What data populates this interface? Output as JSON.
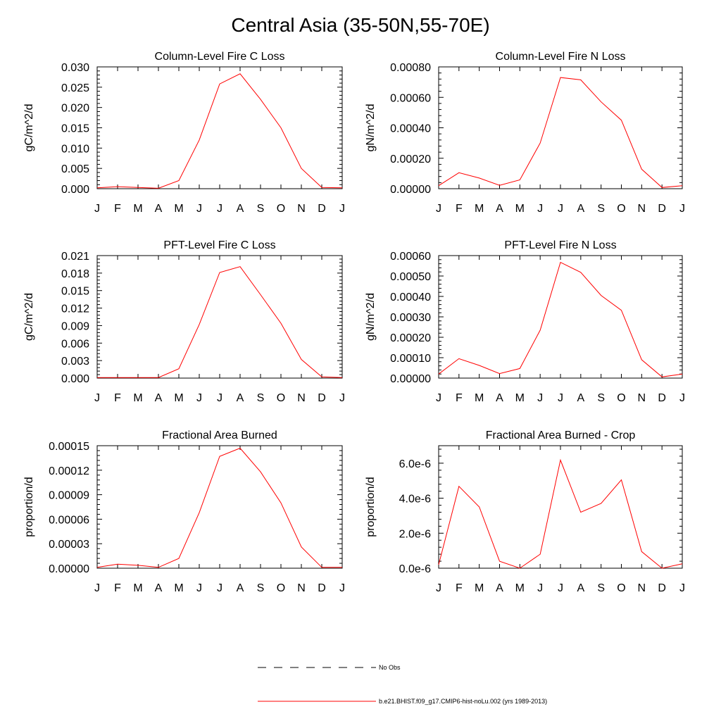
{
  "page": {
    "title": "Central Asia (35-50N,55-70E)"
  },
  "legend": {
    "items": [
      {
        "label": "No Obs",
        "style": "dashed",
        "color": "#000000"
      },
      {
        "label": "b.e21.BHIST.f09_g17.CMIP6-hist-noLu.002 (yrs 1989-2013)",
        "style": "solid",
        "color": "#ff0000"
      }
    ]
  },
  "colors": {
    "series": "#ff0000",
    "axes": "#000000"
  },
  "chart_data": [
    {
      "type": "line",
      "title": "Column-Level Fire C Loss",
      "ylabel": "gC/m^2/d",
      "xlabel": "",
      "categories": [
        "J",
        "F",
        "M",
        "A",
        "M",
        "J",
        "J",
        "A",
        "S",
        "O",
        "N",
        "D",
        "J"
      ],
      "ylim": [
        0,
        0.03
      ],
      "yticks": [
        "0.000",
        "0.005",
        "0.010",
        "0.015",
        "0.020",
        "0.025",
        "0.030"
      ],
      "series": [
        {
          "values": [
            0.0002,
            0.0005,
            0.0003,
            0.0001,
            0.002,
            0.012,
            0.0258,
            0.0283,
            0.022,
            0.015,
            0.005,
            0.0003,
            0.0002
          ]
        }
      ]
    },
    {
      "type": "line",
      "title": "Column-Level Fire N Loss",
      "ylabel": "gN/m^2/d",
      "xlabel": "",
      "categories": [
        "J",
        "F",
        "M",
        "A",
        "M",
        "J",
        "J",
        "A",
        "S",
        "O",
        "N",
        "D",
        "J"
      ],
      "ylim": [
        0,
        0.0008
      ],
      "yticks": [
        "0.00000",
        "0.00020",
        "0.00040",
        "0.00060",
        "0.00080"
      ],
      "series": [
        {
          "values": [
            2e-05,
            0.000105,
            7e-05,
            2.2e-05,
            5.8e-05,
            0.0003,
            0.00073,
            0.000715,
            0.00057,
            0.00045,
            0.000128,
            8e-06,
            2e-05
          ]
        }
      ]
    },
    {
      "type": "line",
      "title": "PFT-Level Fire C Loss",
      "ylabel": "gC/m^2/d",
      "xlabel": "",
      "categories": [
        "J",
        "F",
        "M",
        "A",
        "M",
        "J",
        "J",
        "A",
        "S",
        "O",
        "N",
        "D",
        "J"
      ],
      "ylim": [
        0,
        0.021
      ],
      "yticks": [
        "0.000",
        "0.003",
        "0.006",
        "0.009",
        "0.012",
        "0.015",
        "0.018",
        "0.021"
      ],
      "series": [
        {
          "values": [
            0.0001,
            0.0001,
            0.0001,
            0.0001,
            0.0016,
            0.0092,
            0.0181,
            0.0191,
            0.0143,
            0.0094,
            0.0032,
            0.0002,
            0.0001
          ]
        }
      ]
    },
    {
      "type": "line",
      "title": "PFT-Level Fire N Loss",
      "ylabel": "gN/m^2/d",
      "xlabel": "",
      "categories": [
        "J",
        "F",
        "M",
        "A",
        "M",
        "J",
        "J",
        "A",
        "S",
        "O",
        "N",
        "D",
        "J"
      ],
      "ylim": [
        0,
        0.0006
      ],
      "yticks": [
        "0.00000",
        "0.00010",
        "0.00020",
        "0.00030",
        "0.00040",
        "0.00050",
        "0.00060"
      ],
      "series": [
        {
          "values": [
            2e-05,
            9.5e-05,
            6.2e-05,
            2.2e-05,
            4.7e-05,
            0.000235,
            0.000567,
            0.000518,
            0.000405,
            0.000332,
            9e-05,
            6e-06,
            2e-05
          ]
        }
      ]
    },
    {
      "type": "line",
      "title": "Fractional Area Burned",
      "ylabel": "proportion/d",
      "xlabel": "",
      "categories": [
        "J",
        "F",
        "M",
        "A",
        "M",
        "J",
        "J",
        "A",
        "S",
        "O",
        "N",
        "D",
        "J"
      ],
      "ylim": [
        0,
        0.00015
      ],
      "yticks": [
        "0.00000",
        "0.00003",
        "0.00006",
        "0.00009",
        "0.00012",
        "0.00015"
      ],
      "series": [
        {
          "values": [
            1e-06,
            5e-06,
            3.5e-06,
            1e-06,
            1.2e-05,
            6.8e-05,
            0.000137,
            0.000147,
            0.000118,
            8e-05,
            2.6e-05,
            1e-06,
            1e-06
          ]
        }
      ]
    },
    {
      "type": "line",
      "title": "Fractional Area Burned - Crop",
      "ylabel": "proportion/d",
      "xlabel": "",
      "categories": [
        "J",
        "F",
        "M",
        "A",
        "M",
        "J",
        "J",
        "A",
        "S",
        "O",
        "N",
        "D",
        "J"
      ],
      "ylim": [
        0,
        7e-06
      ],
      "ytickvalues": [
        0,
        2e-06,
        4e-06,
        6e-06
      ],
      "yticks": [
        "0.0e-6",
        "2.0e-6",
        "4.0e-6",
        "6.0e-6"
      ],
      "series": [
        {
          "values": [
            2e-07,
            4.68e-06,
            3.5e-06,
            4e-07,
            0.0,
            8e-07,
            6.18e-06,
            3.2e-06,
            3.7e-06,
            5.05e-06,
            9.5e-07,
            0.0,
            2.5e-07
          ]
        }
      ]
    }
  ]
}
